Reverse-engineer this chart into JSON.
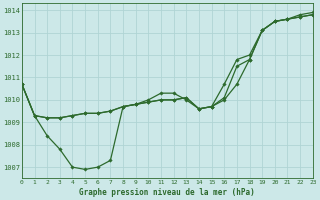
{
  "title": "Graphe pression niveau de la mer (hPa)",
  "background_color": "#cce8e8",
  "grid_color": "#b0d4d4",
  "line_color": "#2d6a2d",
  "x_min": 0,
  "x_max": 23,
  "y_min": 1006.5,
  "y_max": 1014.3,
  "yticks": [
    1007,
    1008,
    1009,
    1010,
    1011,
    1012,
    1013,
    1014
  ],
  "xticks": [
    0,
    1,
    2,
    3,
    4,
    5,
    6,
    7,
    8,
    9,
    10,
    11,
    12,
    13,
    14,
    15,
    16,
    17,
    18,
    19,
    20,
    21,
    22,
    23
  ],
  "series": [
    [
      1010.7,
      1009.3,
      1008.4,
      1007.8,
      1007.0,
      1006.9,
      1007.0,
      1007.3,
      1009.7,
      1009.8,
      1010.0,
      1010.3,
      1010.3,
      1010.0,
      1009.6,
      1009.7,
      1010.0,
      1010.7,
      1011.8,
      1013.1,
      1013.5,
      1013.6,
      1013.7,
      1013.8
    ],
    [
      1010.7,
      1009.3,
      1009.2,
      1009.2,
      1009.3,
      1009.4,
      1009.4,
      1009.5,
      1009.7,
      1009.8,
      1009.9,
      1010.0,
      1010.0,
      1010.1,
      1009.6,
      1009.7,
      1010.1,
      1011.5,
      1011.8,
      1013.1,
      1013.5,
      1013.6,
      1013.7,
      1013.8
    ],
    [
      1010.7,
      1009.3,
      1009.2,
      1009.2,
      1009.3,
      1009.4,
      1009.4,
      1009.5,
      1009.7,
      1009.8,
      1009.9,
      1010.0,
      1010.0,
      1010.1,
      1009.6,
      1009.7,
      1010.7,
      1011.8,
      1012.0,
      1013.1,
      1013.5,
      1013.6,
      1013.8,
      1013.9
    ]
  ],
  "figsize": [
    3.2,
    2.0
  ],
  "dpi": 100
}
